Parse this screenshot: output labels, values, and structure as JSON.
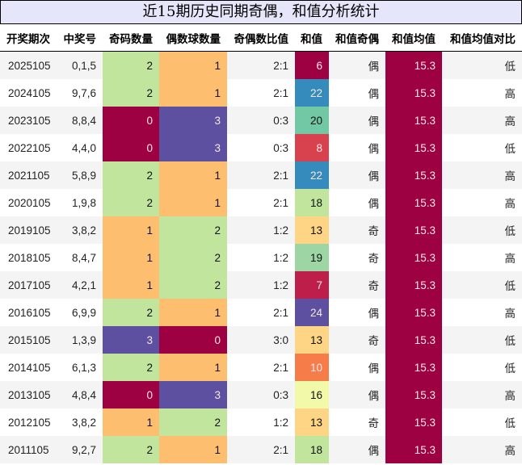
{
  "title": "近15期历史同期奇偶，和值分析统计",
  "table": {
    "headers": [
      "开奖期次",
      "中奖号",
      "奇码数量",
      "偶数球数量",
      "奇偶数比值",
      "和值",
      "和值奇偶",
      "和值均值",
      "和值均值对比"
    ],
    "rows": [
      {
        "period": "2025105",
        "numbers": "0,1,5",
        "odd_count": "2",
        "even_count": "1",
        "ratio": "2:1",
        "sum": "6",
        "sum_parity": "偶",
        "sum_mean": "15.3",
        "mean_compare": "低"
      },
      {
        "period": "2024105",
        "numbers": "9,7,6",
        "odd_count": "2",
        "even_count": "1",
        "ratio": "2:1",
        "sum": "22",
        "sum_parity": "偶",
        "sum_mean": "15.3",
        "mean_compare": "高"
      },
      {
        "period": "2023105",
        "numbers": "8,8,4",
        "odd_count": "0",
        "even_count": "3",
        "ratio": "0:3",
        "sum": "20",
        "sum_parity": "偶",
        "sum_mean": "15.3",
        "mean_compare": "高"
      },
      {
        "period": "2022105",
        "numbers": "4,4,0",
        "odd_count": "0",
        "even_count": "3",
        "ratio": "0:3",
        "sum": "8",
        "sum_parity": "偶",
        "sum_mean": "15.3",
        "mean_compare": "低"
      },
      {
        "period": "2021105",
        "numbers": "5,8,9",
        "odd_count": "2",
        "even_count": "1",
        "ratio": "2:1",
        "sum": "22",
        "sum_parity": "偶",
        "sum_mean": "15.3",
        "mean_compare": "高"
      },
      {
        "period": "2020105",
        "numbers": "1,9,8",
        "odd_count": "2",
        "even_count": "1",
        "ratio": "2:1",
        "sum": "18",
        "sum_parity": "偶",
        "sum_mean": "15.3",
        "mean_compare": "高"
      },
      {
        "period": "2019105",
        "numbers": "3,8,2",
        "odd_count": "1",
        "even_count": "2",
        "ratio": "1:2",
        "sum": "13",
        "sum_parity": "奇",
        "sum_mean": "15.3",
        "mean_compare": "低"
      },
      {
        "period": "2018105",
        "numbers": "8,4,7",
        "odd_count": "1",
        "even_count": "2",
        "ratio": "1:2",
        "sum": "19",
        "sum_parity": "奇",
        "sum_mean": "15.3",
        "mean_compare": "高"
      },
      {
        "period": "2017105",
        "numbers": "4,2,1",
        "odd_count": "1",
        "even_count": "2",
        "ratio": "1:2",
        "sum": "7",
        "sum_parity": "奇",
        "sum_mean": "15.3",
        "mean_compare": "低"
      },
      {
        "period": "2016105",
        "numbers": "6,9,9",
        "odd_count": "2",
        "even_count": "1",
        "ratio": "2:1",
        "sum": "24",
        "sum_parity": "偶",
        "sum_mean": "15.3",
        "mean_compare": "高"
      },
      {
        "period": "2015105",
        "numbers": "1,3,9",
        "odd_count": "3",
        "even_count": "0",
        "ratio": "3:0",
        "sum": "13",
        "sum_parity": "奇",
        "sum_mean": "15.3",
        "mean_compare": "低"
      },
      {
        "period": "2014105",
        "numbers": "6,1,3",
        "odd_count": "2",
        "even_count": "1",
        "ratio": "2:1",
        "sum": "10",
        "sum_parity": "偶",
        "sum_mean": "15.3",
        "mean_compare": "低"
      },
      {
        "period": "2013105",
        "numbers": "4,8,4",
        "odd_count": "0",
        "even_count": "3",
        "ratio": "0:3",
        "sum": "16",
        "sum_parity": "偶",
        "sum_mean": "15.3",
        "mean_compare": "高"
      },
      {
        "period": "2012105",
        "numbers": "3,8,2",
        "odd_count": "1",
        "even_count": "2",
        "ratio": "1:2",
        "sum": "13",
        "sum_parity": "奇",
        "sum_mean": "15.3",
        "mean_compare": "低"
      },
      {
        "period": "2011105",
        "numbers": "9,2,7",
        "odd_count": "2",
        "even_count": "1",
        "ratio": "2:1",
        "sum": "18",
        "sum_parity": "偶",
        "sum_mean": "15.3",
        "mean_compare": "高"
      }
    ]
  },
  "colors": {
    "title_bg": "#e6e6fa",
    "row_stripe": "#f4f4f4",
    "count_scale": {
      "0": "#9e0142",
      "1": "#fdbe6f",
      "2": "#c1e59c",
      "3": "#5e50a1"
    },
    "sum_scale": {
      "6": "#9e0142",
      "7": "#be1f4a",
      "8": "#d8424e",
      "10": "#f67c4a",
      "13": "#fdd585",
      "16": "#f2f9a9",
      "18": "#c1e59c",
      "19": "#9dd6a4",
      "20": "#72c8a4",
      "22": "#358cbc",
      "24": "#5e50a1"
    },
    "mean": "#9e0142"
  },
  "chart_data": {
    "type": "table",
    "title": "近15期历史同期奇偶，和值分析统计",
    "columns": [
      "开奖期次",
      "中奖号",
      "奇码数量",
      "偶数球数量",
      "奇偶数比值",
      "和值",
      "和值奇偶",
      "和值均值",
      "和值均值对比"
    ],
    "x": [
      "2025105",
      "2024105",
      "2023105",
      "2022105",
      "2021105",
      "2020105",
      "2019105",
      "2018105",
      "2017105",
      "2016105",
      "2015105",
      "2014105",
      "2013105",
      "2012105",
      "2011105"
    ],
    "series": [
      {
        "name": "中奖号",
        "values": [
          "0,1,5",
          "9,7,6",
          "8,8,4",
          "4,4,0",
          "5,8,9",
          "1,9,8",
          "3,8,2",
          "8,4,7",
          "4,2,1",
          "6,9,9",
          "1,3,9",
          "6,1,3",
          "4,8,4",
          "3,8,2",
          "9,2,7"
        ]
      },
      {
        "name": "奇码数量",
        "values": [
          2,
          2,
          0,
          0,
          2,
          2,
          1,
          1,
          1,
          2,
          3,
          2,
          0,
          1,
          2
        ]
      },
      {
        "name": "偶数球数量",
        "values": [
          1,
          1,
          3,
          3,
          1,
          1,
          2,
          2,
          2,
          1,
          0,
          1,
          3,
          2,
          1
        ]
      },
      {
        "name": "奇偶数比值",
        "values": [
          "2:1",
          "2:1",
          "0:3",
          "0:3",
          "2:1",
          "2:1",
          "1:2",
          "1:2",
          "1:2",
          "2:1",
          "3:0",
          "2:1",
          "0:3",
          "1:2",
          "2:1"
        ]
      },
      {
        "name": "和值",
        "values": [
          6,
          22,
          20,
          8,
          22,
          18,
          13,
          19,
          7,
          24,
          13,
          10,
          16,
          13,
          18
        ]
      },
      {
        "name": "和值奇偶",
        "values": [
          "偶",
          "偶",
          "偶",
          "偶",
          "偶",
          "偶",
          "奇",
          "奇",
          "奇",
          "偶",
          "奇",
          "偶",
          "偶",
          "奇",
          "偶"
        ]
      },
      {
        "name": "和值均值",
        "values": [
          15.3,
          15.3,
          15.3,
          15.3,
          15.3,
          15.3,
          15.3,
          15.3,
          15.3,
          15.3,
          15.3,
          15.3,
          15.3,
          15.3,
          15.3
        ]
      },
      {
        "name": "和值均值对比",
        "values": [
          "低",
          "高",
          "高",
          "低",
          "高",
          "高",
          "低",
          "高",
          "低",
          "高",
          "低",
          "低",
          "高",
          "低",
          "高"
        ]
      }
    ]
  }
}
